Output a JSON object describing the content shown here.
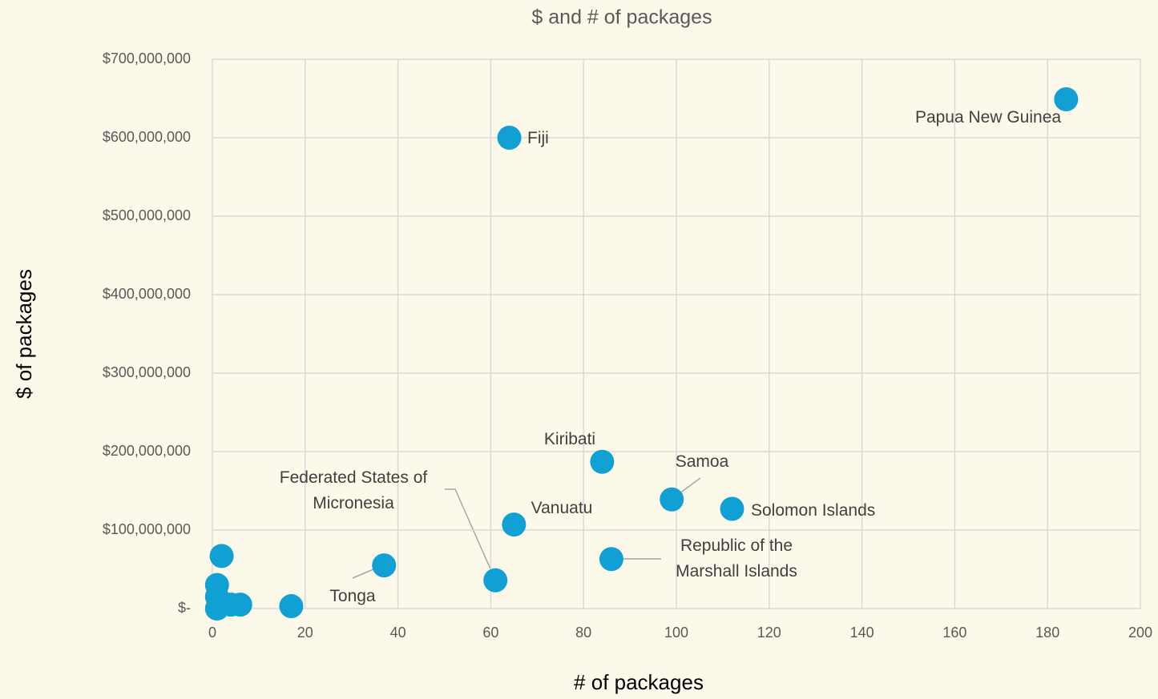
{
  "chart_data": {
    "type": "scatter",
    "title": "$ and # of packages",
    "x_label": "# of packages",
    "y_label": "$ of packages",
    "color": "#11a0d4",
    "x": [
      184,
      64,
      84,
      99,
      112,
      65,
      86,
      61,
      37,
      17,
      2,
      1,
      1,
      1,
      4,
      6
    ],
    "values": [
      649000000,
      600000000,
      187000000,
      139000000,
      127000000,
      107000000,
      63000000,
      36000000,
      55000000,
      3000000,
      67000000,
      30000000,
      15000000,
      0,
      5000000,
      5000000
    ],
    "labels": [
      "Papua New Guinea",
      "Fiji",
      "Kiribati",
      "Samoa",
      "Solomon Islands",
      "Vanuatu",
      "Republic of the Marshall Islands",
      "Federated States of Micronesia",
      "Tonga",
      null,
      null,
      null,
      null,
      null,
      null,
      null
    ],
    "xlim": [
      0,
      200
    ],
    "xticks": [
      0,
      20,
      40,
      60,
      80,
      100,
      120,
      140,
      160,
      180,
      200
    ],
    "ylim": [
      0,
      700000000
    ],
    "yticks": [
      {
        "value": 0,
        "label": "$-"
      },
      {
        "value": 100000000,
        "label": "$100,000,000"
      },
      {
        "value": 200000000,
        "label": "$200,000,000"
      },
      {
        "value": 300000000,
        "label": "$300,000,000"
      },
      {
        "value": 400000000,
        "label": "$400,000,000"
      },
      {
        "value": 500000000,
        "label": "$500,000,000"
      },
      {
        "value": 600000000,
        "label": "$600,000,000"
      },
      {
        "value": 700000000,
        "label": "$700,000,000"
      }
    ],
    "grid": true
  }
}
